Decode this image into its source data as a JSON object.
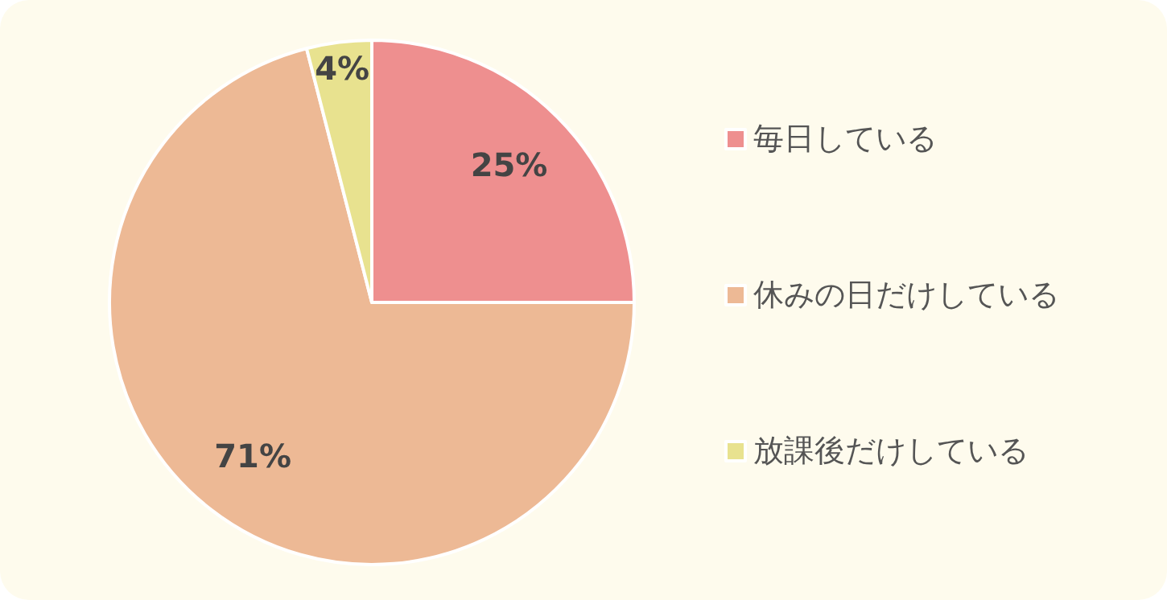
{
  "chart_data": {
    "type": "pie",
    "categories": [
      "毎日している",
      "休みの日だけしている",
      "放課後だけしている"
    ],
    "values": [
      25,
      71,
      4
    ],
    "colors": [
      "#ee8f8f",
      "#edb995",
      "#e8e28f"
    ],
    "value_labels": [
      "25%",
      "71%",
      "4%"
    ],
    "legend": "right"
  }
}
